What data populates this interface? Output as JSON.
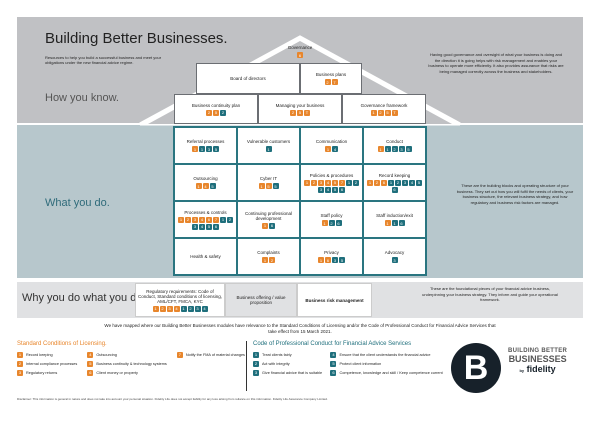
{
  "header": {
    "title": "Building Better Businesses.",
    "intro": "Resources to help you build a successful business and meet your obligations under the new financial advice regime.",
    "how_label": "How you know.",
    "how_text": "Having good governance and oversight of what your business is doing and the direction it is going helps with risk management and enables your business to operate more efficiently. It also provides assurance that risks are being managed correctly across the business and stakeholders."
  },
  "roof": [
    {
      "label": "Governance",
      "badges": [
        [
          "o",
          "6"
        ]
      ]
    },
    {
      "label": "Board of directors",
      "badges": []
    },
    {
      "label": "Business plans",
      "badges": [
        [
          "o",
          "2"
        ],
        [
          "o",
          "7"
        ]
      ]
    },
    {
      "label": "Business continuity plan",
      "badges": [
        [
          "o",
          "2"
        ],
        [
          "o",
          "5"
        ],
        [
          "t",
          "2"
        ]
      ]
    },
    {
      "label": "Managing your business",
      "badges": [
        [
          "o",
          "2"
        ],
        [
          "o",
          "5"
        ],
        [
          "o",
          "T"
        ]
      ]
    },
    {
      "label": "Governance framework",
      "badges": [
        [
          "o",
          "1"
        ],
        [
          "o",
          "2"
        ],
        [
          "o",
          "5"
        ],
        [
          "o",
          "T"
        ]
      ]
    }
  ],
  "what": {
    "label": "What you do.",
    "text": "These are the building blocks and operating structure of your business. They set out how you will fulfil the needs of clients, your business structure, the relevant business strategy, and how regulatory and business risk factors are managed.",
    "cells": [
      {
        "label": "Referral processes",
        "badges": [
          [
            "o",
            "1"
          ],
          [
            "t",
            "1"
          ],
          [
            "t",
            "3"
          ],
          [
            "t",
            "5"
          ]
        ]
      },
      {
        "label": "Vulnerable customers",
        "badges": [
          [
            "t",
            "1"
          ]
        ]
      },
      {
        "label": "Communication",
        "badges": [
          [
            "o",
            "1"
          ],
          [
            "t",
            "4"
          ]
        ]
      },
      {
        "label": "Conduct",
        "badges": [
          [
            "o",
            "1"
          ],
          [
            "t",
            "1"
          ],
          [
            "t",
            "2"
          ],
          [
            "t",
            "3"
          ],
          [
            "t",
            "5"
          ]
        ]
      },
      {
        "label": "Outsourcing",
        "badges": [
          [
            "o",
            "1"
          ],
          [
            "o",
            "4"
          ],
          [
            "t",
            "5"
          ]
        ]
      },
      {
        "label": "Cyber IT",
        "badges": [
          [
            "o",
            "1"
          ],
          [
            "o",
            "5"
          ],
          [
            "t",
            "5"
          ]
        ]
      },
      {
        "label": "Policies & procedures",
        "badges": [
          [
            "o",
            "1"
          ],
          [
            "o",
            "2"
          ],
          [
            "o",
            "3"
          ],
          [
            "o",
            "4"
          ],
          [
            "o",
            "5"
          ],
          [
            "o",
            "7"
          ],
          [
            "t",
            "1"
          ],
          [
            "t",
            "2"
          ],
          [
            "t",
            "3"
          ],
          [
            "t",
            "4"
          ],
          [
            "t",
            "5"
          ],
          [
            "t",
            "6"
          ]
        ]
      },
      {
        "label": "Record keeping",
        "badges": [
          [
            "o",
            "1"
          ],
          [
            "o",
            "2"
          ],
          [
            "o",
            "6"
          ],
          [
            "t",
            "1"
          ],
          [
            "t",
            "2"
          ],
          [
            "t",
            "3"
          ],
          [
            "t",
            "4"
          ],
          [
            "t",
            "5"
          ],
          [
            "t",
            "6"
          ]
        ]
      },
      {
        "label": "Processes & controls",
        "badges": [
          [
            "o",
            "1"
          ],
          [
            "o",
            "2"
          ],
          [
            "o",
            "3"
          ],
          [
            "o",
            "4"
          ],
          [
            "o",
            "6"
          ],
          [
            "o",
            "7"
          ],
          [
            "t",
            "1"
          ],
          [
            "t",
            "2"
          ],
          [
            "t",
            "3"
          ],
          [
            "t",
            "4"
          ],
          [
            "t",
            "5"
          ],
          [
            "t",
            "6"
          ]
        ]
      },
      {
        "label": "Continuing professional development",
        "badges": [
          [
            "o",
            "1"
          ],
          [
            "t",
            "6"
          ]
        ]
      },
      {
        "label": "Staff policy",
        "badges": [
          [
            "o",
            "1"
          ],
          [
            "t",
            "2"
          ],
          [
            "t",
            "6"
          ]
        ]
      },
      {
        "label": "Staff induction/exit",
        "badges": [
          [
            "o",
            "1"
          ],
          [
            "t",
            "1"
          ],
          [
            "t",
            "6"
          ]
        ]
      },
      {
        "label": "Health & safety",
        "badges": []
      },
      {
        "label": "Complaints",
        "badges": [
          [
            "o",
            "1"
          ],
          [
            "o",
            "2"
          ]
        ]
      },
      {
        "label": "Privacy",
        "badges": [
          [
            "o",
            "1"
          ],
          [
            "o",
            "6"
          ],
          [
            "t",
            "3"
          ],
          [
            "t",
            "5"
          ]
        ]
      },
      {
        "label": "Advocacy",
        "badges": [
          [
            "t",
            "3"
          ]
        ]
      }
    ]
  },
  "why": {
    "label": "Why you do what you do.",
    "boxes": [
      {
        "label": "Regulatory requirements: Code of Conduct, Standard conditions of licensing, AML/CFT, FMCA, KYC",
        "badges": [
          [
            "o",
            "1"
          ],
          [
            "o",
            "2"
          ],
          [
            "o",
            "3"
          ],
          [
            "o",
            "4"
          ],
          [
            "t",
            "1"
          ],
          [
            "t",
            "2"
          ],
          [
            "t",
            "3"
          ],
          [
            "t",
            "4"
          ]
        ]
      },
      {
        "label": "Business offering / value proposition",
        "badges": []
      },
      {
        "label": "Business risk management",
        "badges": []
      }
    ],
    "text": "These are the foundational pieces of your financial advice business, underpinning your business strategy. They inform and guide your operational framework."
  },
  "mapping_note": "We have mapped where our Building Better Businesses modules have relevance to the Standard Conditions of Licensing and/or the Code of Professional Conduct for Financial Advice Services that take effect from 15 March 2021.",
  "licensing": {
    "title": "Standard Conditions of Licensing.",
    "items": [
      [
        "1",
        "Record keeping"
      ],
      [
        "2",
        "Internal compliance processes"
      ],
      [
        "3",
        "Regulatory returns"
      ],
      [
        "4",
        "Outsourcing"
      ],
      [
        "5",
        "Business continuity & technology systems"
      ],
      [
        "6",
        "Client money or property"
      ],
      [
        "7",
        "Notify the FMA of material changes"
      ]
    ]
  },
  "code": {
    "title": "Code of Professional Conduct for Financial Advice Services",
    "items": [
      [
        "1",
        "Treat clients fairly"
      ],
      [
        "2",
        "Act with integrity"
      ],
      [
        "3",
        "Give financial advice that is suitable"
      ],
      [
        "4",
        "Ensure that the client understands the financial advice"
      ],
      [
        "5",
        "Protect client information"
      ],
      [
        "6",
        "Competence, knowledge and skill / Keep competence current"
      ]
    ]
  },
  "logo": {
    "line1": "BUILDING BETTER",
    "line2": "BUSINESSES",
    "by": "by",
    "brand": "fidelity"
  },
  "disclaimer": "Disclaimer: This information is general in nature and does not take into account your personal situation. Fidelity Life does not accept liability for any loss arising from reliance on this information. Fidelity Life Assurance Company Limited.",
  "colors": {
    "licensing": "#e8862c",
    "code": "#1f6f7c"
  }
}
